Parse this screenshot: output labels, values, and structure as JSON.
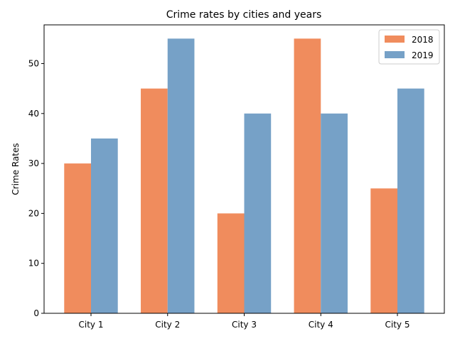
{
  "chart_data": {
    "type": "bar",
    "title": "Crime rates by cities and years",
    "xlabel": "",
    "ylabel": "Crime Rates",
    "categories": [
      "City 1",
      "City 2",
      "City 3",
      "City 4",
      "City 5"
    ],
    "series": [
      {
        "name": "2018",
        "values": [
          30,
          45,
          20,
          55,
          25
        ],
        "color": "#f08c5d"
      },
      {
        "name": "2019",
        "values": [
          35,
          55,
          40,
          40,
          45
        ],
        "color": "#76a1c7"
      }
    ],
    "yticks": [
      0,
      10,
      20,
      30,
      40,
      50
    ],
    "ylim": [
      0,
      57.75
    ],
    "grid": false,
    "legend_position": "top-right"
  }
}
